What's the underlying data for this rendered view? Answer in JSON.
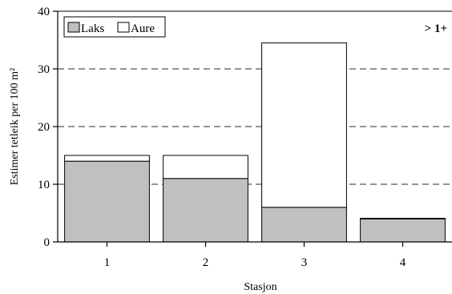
{
  "chart_data": {
    "type": "bar",
    "stacked": true,
    "categories": [
      "1",
      "2",
      "3",
      "4"
    ],
    "series": [
      {
        "name": "Laks",
        "values": [
          14,
          11,
          6,
          4
        ],
        "color": "#c0c0c0"
      },
      {
        "name": "Aure",
        "values": [
          1,
          4,
          28.5,
          0.1
        ],
        "color": "#ffffff"
      }
    ],
    "xlabel": "Stasjon",
    "ylabel": "Estimer tetleik per 100 m²",
    "ylim": [
      0,
      40
    ],
    "yticks": [
      0,
      10,
      20,
      30,
      40
    ],
    "grid": "dashed horizontal at 10, 20, 30",
    "legend": "top-left",
    "annotation": "> 1+"
  }
}
